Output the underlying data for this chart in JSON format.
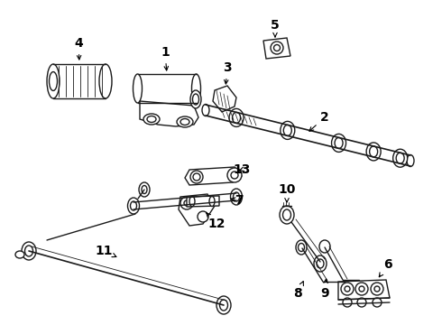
{
  "bg_color": "#ffffff",
  "line_color": "#1a1a1a",
  "label_color": "#000000",
  "figsize": [
    4.9,
    3.6
  ],
  "dpi": 100,
  "font_size": 10
}
